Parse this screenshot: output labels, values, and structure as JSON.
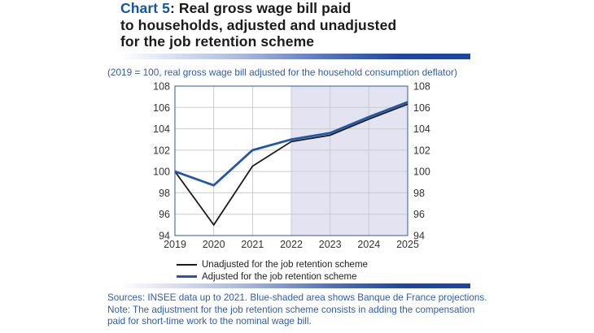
{
  "header": {
    "chart_label": "Chart 5",
    "title_line1_rest": ": Real gross wage bill paid",
    "title_line2": "to households, adjusted and unadjusted",
    "title_line3": "for the job retention scheme"
  },
  "subtitle": "(2019 = 100, real gross wage bill adjusted for the household consumption deflator)",
  "notes": [
    "Sources: INSEE data up to 2021. Blue-shaded area shows Banque de France projections.",
    "Note: The adjustment for the job retention scheme consists in adding the compensation",
    "paid for short-time work to the nominal wage bill."
  ],
  "colors": {
    "accent_blue": "#1257ad",
    "note_blue": "#2d5db6"
  },
  "chart_data": {
    "type": "line",
    "title": "Real gross wage bill paid to households, adjusted and unadjusted for the job retention scheme",
    "categories": [
      "2019",
      "2020",
      "2021",
      "2022",
      "2023",
      "2024",
      "2025"
    ],
    "series": [
      {
        "name": "Unadjusted for the job retention scheme",
        "color": "#1a1a1a",
        "width": 1.8,
        "values": [
          100,
          95.0,
          100.5,
          102.8,
          103.4,
          104.9,
          106.3
        ]
      },
      {
        "name": "Adjusted for the job retention scheme",
        "color": "#2257a8",
        "width": 2.8,
        "values": [
          100,
          98.7,
          102.0,
          103.0,
          103.6,
          105.1,
          106.5
        ]
      }
    ],
    "ylim": [
      94,
      108
    ],
    "y_ticks": [
      94,
      96,
      98,
      100,
      102,
      104,
      106,
      108
    ],
    "grid": true,
    "legend_position": "bottom",
    "projection_start": "2022",
    "projection_fill": "#e3e3f1",
    "grid_color": "#cccccc",
    "border_color": "#4d74b9",
    "axis_text_color": "#333333"
  }
}
